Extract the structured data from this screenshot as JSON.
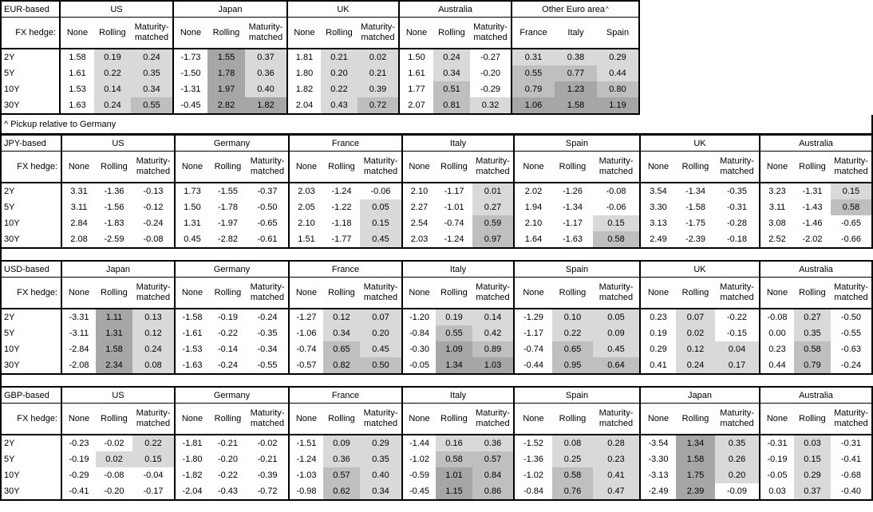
{
  "shading": {
    "negative": "#ffffff",
    "low": "#d9d9d9",
    "mid": "#bfbfbf",
    "high": "#a6a6a6",
    "thresholds": [
      0,
      0.5,
      1.0
    ],
    "note": "applies to hedged columns only (Rolling, Maturity-matched) and to all columns of the Other Euro area group"
  },
  "footnote": "^ Pickup relative to Germany",
  "tables": [
    {
      "label": "EUR-based",
      "fx_hedge_label": "FX hedge:",
      "tenors": [
        "2Y",
        "5Y",
        "10Y",
        "30Y"
      ],
      "groups": [
        {
          "name": "US",
          "cols": [
            "None",
            "Rolling",
            "Maturity-matched"
          ],
          "rows": [
            [
              "1.58",
              "0.19",
              "0.24"
            ],
            [
              "1.61",
              "0.22",
              "0.35"
            ],
            [
              "1.53",
              "0.14",
              "0.34"
            ],
            [
              "1.63",
              "0.24",
              "0.55"
            ]
          ]
        },
        {
          "name": "Japan",
          "cols": [
            "None",
            "Rolling",
            "Maturity-matched"
          ],
          "rows": [
            [
              "-1.73",
              "1.55",
              "0.37"
            ],
            [
              "-1.50",
              "1.78",
              "0.36"
            ],
            [
              "-1.31",
              "1.97",
              "0.40"
            ],
            [
              "-0.45",
              "2.82",
              "1.82"
            ]
          ]
        },
        {
          "name": "UK",
          "cols": [
            "None",
            "Rolling",
            "Maturity-matched"
          ],
          "rows": [
            [
              "1.81",
              "0.21",
              "0.02"
            ],
            [
              "1.80",
              "0.20",
              "0.21"
            ],
            [
              "1.82",
              "0.22",
              "0.39"
            ],
            [
              "2.04",
              "0.43",
              "0.72"
            ]
          ]
        },
        {
          "name": "Australia",
          "cols": [
            "None",
            "Rolling",
            "Maturity-matched"
          ],
          "rows": [
            [
              "1.50",
              "0.24",
              "-0.27"
            ],
            [
              "1.61",
              "0.34",
              "-0.20"
            ],
            [
              "1.77",
              "0.51",
              "-0.29"
            ],
            [
              "2.07",
              "0.81",
              "0.32"
            ]
          ]
        },
        {
          "name": "Other Euro area",
          "sup": "^",
          "shade_all": true,
          "cols": [
            "France",
            "Italy",
            "Spain"
          ],
          "rows": [
            [
              "0.31",
              "0.38",
              "0.29"
            ],
            [
              "0.55",
              "0.77",
              "0.44"
            ],
            [
              "0.79",
              "1.23",
              "0.80"
            ],
            [
              "1.06",
              "1.58",
              "1.19"
            ]
          ]
        }
      ]
    },
    {
      "label": "JPY-based",
      "fx_hedge_label": "FX hedge:",
      "tenors": [
        "2Y",
        "5Y",
        "10Y",
        "30Y"
      ],
      "groups": [
        {
          "name": "US",
          "cols": [
            "None",
            "Rolling",
            "Maturity-matched"
          ],
          "rows": [
            [
              "3.31",
              "-1.36",
              "-0.13"
            ],
            [
              "3.11",
              "-1.56",
              "-0.12"
            ],
            [
              "2.84",
              "-1.83",
              "-0.24"
            ],
            [
              "2.08",
              "-2.59",
              "-0.08"
            ]
          ]
        },
        {
          "name": "Germany",
          "cols": [
            "None",
            "Rolling",
            "Maturity-matched"
          ],
          "rows": [
            [
              "1.73",
              "-1.55",
              "-0.37"
            ],
            [
              "1.50",
              "-1.78",
              "-0.50"
            ],
            [
              "1.31",
              "-1.97",
              "-0.65"
            ],
            [
              "0.45",
              "-2.82",
              "-0.61"
            ]
          ]
        },
        {
          "name": "France",
          "cols": [
            "None",
            "Rolling",
            "Maturity-matched"
          ],
          "rows": [
            [
              "2.03",
              "-1.24",
              "-0.06"
            ],
            [
              "2.05",
              "-1.22",
              "0.05"
            ],
            [
              "2.10",
              "-1.18",
              "0.15"
            ],
            [
              "1.51",
              "-1.77",
              "0.45"
            ]
          ]
        },
        {
          "name": "Italy",
          "cols": [
            "None",
            "Rolling",
            "Maturity-matched"
          ],
          "rows": [
            [
              "2.10",
              "-1.17",
              "0.01"
            ],
            [
              "2.27",
              "-1.01",
              "0.27"
            ],
            [
              "2.54",
              "-0.74",
              "0.59"
            ],
            [
              "2.03",
              "-1.24",
              "0.97"
            ]
          ]
        },
        {
          "name": "Spain",
          "cols": [
            "None",
            "Rolling",
            "Maturity-matched"
          ],
          "rows": [
            [
              "2.02",
              "-1.26",
              "-0.08"
            ],
            [
              "1.94",
              "-1.34",
              "-0.06"
            ],
            [
              "2.10",
              "-1.17",
              "0.15"
            ],
            [
              "1.64",
              "-1.63",
              "0.58"
            ]
          ]
        },
        {
          "name": "UK",
          "cols": [
            "None",
            "Rolling",
            "Maturity-matched"
          ],
          "rows": [
            [
              "3.54",
              "-1.34",
              "-0.35"
            ],
            [
              "3.30",
              "-1.58",
              "-0.31"
            ],
            [
              "3.13",
              "-1.75",
              "-0.28"
            ],
            [
              "2.49",
              "-2.39",
              "-0.18"
            ]
          ]
        },
        {
          "name": "Australia",
          "cols": [
            "None",
            "Rolling",
            "Maturity-matched"
          ],
          "rows": [
            [
              "3.23",
              "-1.31",
              "0.15"
            ],
            [
              "3.11",
              "-1.43",
              "0.58"
            ],
            [
              "3.08",
              "-1.46",
              "-0.65"
            ],
            [
              "2.52",
              "-2.02",
              "-0.66"
            ]
          ]
        }
      ]
    },
    {
      "label": "USD-based",
      "fx_hedge_label": "FX hedge:",
      "tenors": [
        "2Y",
        "5Y",
        "10Y",
        "30Y"
      ],
      "groups": [
        {
          "name": "Japan",
          "cols": [
            "None",
            "Rolling",
            "Maturity-matched"
          ],
          "rows": [
            [
              "-3.31",
              "1.11",
              "0.13"
            ],
            [
              "-3.11",
              "1.31",
              "0.12"
            ],
            [
              "-2.84",
              "1.58",
              "0.24"
            ],
            [
              "-2.08",
              "2.34",
              "0.08"
            ]
          ]
        },
        {
          "name": "Germany",
          "cols": [
            "None",
            "Rolling",
            "Maturity-matched"
          ],
          "rows": [
            [
              "-1.58",
              "-0.19",
              "-0.24"
            ],
            [
              "-1.61",
              "-0.22",
              "-0.35"
            ],
            [
              "-1.53",
              "-0.14",
              "-0.34"
            ],
            [
              "-1.63",
              "-0.24",
              "-0.55"
            ]
          ]
        },
        {
          "name": "France",
          "cols": [
            "None",
            "Rolling",
            "Maturity-matched"
          ],
          "rows": [
            [
              "-1.27",
              "0.12",
              "0.07"
            ],
            [
              "-1.06",
              "0.34",
              "0.20"
            ],
            [
              "-0.74",
              "0.65",
              "0.45"
            ],
            [
              "-0.57",
              "0.82",
              "0.50"
            ]
          ]
        },
        {
          "name": "Italy",
          "cols": [
            "None",
            "Rolling",
            "Maturity-matched"
          ],
          "rows": [
            [
              "-1.20",
              "0.19",
              "0.14"
            ],
            [
              "-0.84",
              "0.55",
              "0.42"
            ],
            [
              "-0.30",
              "1.09",
              "0.89"
            ],
            [
              "-0.05",
              "1.34",
              "1.03"
            ]
          ]
        },
        {
          "name": "Spain",
          "cols": [
            "None",
            "Rolling",
            "Maturity-matched"
          ],
          "rows": [
            [
              "-1.29",
              "0.10",
              "0.05"
            ],
            [
              "-1.17",
              "0.22",
              "0.09"
            ],
            [
              "-0.74",
              "0.65",
              "0.45"
            ],
            [
              "-0.44",
              "0.95",
              "0.64"
            ]
          ]
        },
        {
          "name": "UK",
          "cols": [
            "None",
            "Rolling",
            "Maturity-matched"
          ],
          "rows": [
            [
              "0.23",
              "0.07",
              "-0.22"
            ],
            [
              "0.19",
              "0.02",
              "-0.15"
            ],
            [
              "0.29",
              "0.12",
              "0.04"
            ],
            [
              "0.41",
              "0.24",
              "0.17"
            ]
          ]
        },
        {
          "name": "Australia",
          "cols": [
            "None",
            "Rolling",
            "Maturity-matched"
          ],
          "rows": [
            [
              "-0.08",
              "0.27",
              "-0.50"
            ],
            [
              "0.00",
              "0.35",
              "-0.55"
            ],
            [
              "0.23",
              "0.58",
              "-0.63"
            ],
            [
              "0.44",
              "0.79",
              "-0.24"
            ]
          ]
        }
      ]
    },
    {
      "label": "GBP-based",
      "fx_hedge_label": "FX hedge:",
      "tenors": [
        "2Y",
        "5Y",
        "10Y",
        "30Y"
      ],
      "groups": [
        {
          "name": "US",
          "cols": [
            "None",
            "Rolling",
            "Maturity-matched"
          ],
          "rows": [
            [
              "-0.23",
              "-0.02",
              "0.22"
            ],
            [
              "-0.19",
              "0.02",
              "0.15"
            ],
            [
              "-0.29",
              "-0.08",
              "-0.04"
            ],
            [
              "-0.41",
              "-0.20",
              "-0.17"
            ]
          ]
        },
        {
          "name": "Germany",
          "cols": [
            "None",
            "Rolling",
            "Maturity-matched"
          ],
          "rows": [
            [
              "-1.81",
              "-0.21",
              "-0.02"
            ],
            [
              "-1.80",
              "-0.20",
              "-0.21"
            ],
            [
              "-1.82",
              "-0.22",
              "-0.39"
            ],
            [
              "-2.04",
              "-0.43",
              "-0.72"
            ]
          ]
        },
        {
          "name": "France",
          "cols": [
            "None",
            "Rolling",
            "Maturity-matched"
          ],
          "rows": [
            [
              "-1.51",
              "0.09",
              "0.29"
            ],
            [
              "-1.24",
              "0.36",
              "0.35"
            ],
            [
              "-1.03",
              "0.57",
              "0.40"
            ],
            [
              "-0.98",
              "0.62",
              "0.34"
            ]
          ]
        },
        {
          "name": "Italy",
          "cols": [
            "None",
            "Rolling",
            "Maturity-matched"
          ],
          "rows": [
            [
              "-1.44",
              "0.16",
              "0.36"
            ],
            [
              "-1.02",
              "0.58",
              "0.57"
            ],
            [
              "-0.59",
              "1.01",
              "0.84"
            ],
            [
              "-0.45",
              "1.15",
              "0.86"
            ]
          ]
        },
        {
          "name": "Spain",
          "cols": [
            "None",
            "Rolling",
            "Maturity-matched"
          ],
          "rows": [
            [
              "-1.52",
              "0.08",
              "0.28"
            ],
            [
              "-1.36",
              "0.25",
              "0.23"
            ],
            [
              "-1.02",
              "0.58",
              "0.41"
            ],
            [
              "-0.84",
              "0.76",
              "0.47"
            ]
          ]
        },
        {
          "name": "Japan",
          "cols": [
            "None",
            "Rolling",
            "Maturity-matched"
          ],
          "rows": [
            [
              "-3.54",
              "1.34",
              "0.35"
            ],
            [
              "-3.30",
              "1.58",
              "0.26"
            ],
            [
              "-3.13",
              "1.75",
              "0.20"
            ],
            [
              "-2.49",
              "2.39",
              "-0.09"
            ]
          ]
        },
        {
          "name": "Australia",
          "cols": [
            "None",
            "Rolling",
            "Maturity-matched"
          ],
          "rows": [
            [
              "-0.31",
              "0.03",
              "-0.31"
            ],
            [
              "-0.19",
              "0.15",
              "-0.41"
            ],
            [
              "-0.05",
              "0.29",
              "-0.68"
            ],
            [
              "0.03",
              "0.37",
              "-0.40"
            ]
          ]
        }
      ]
    }
  ]
}
